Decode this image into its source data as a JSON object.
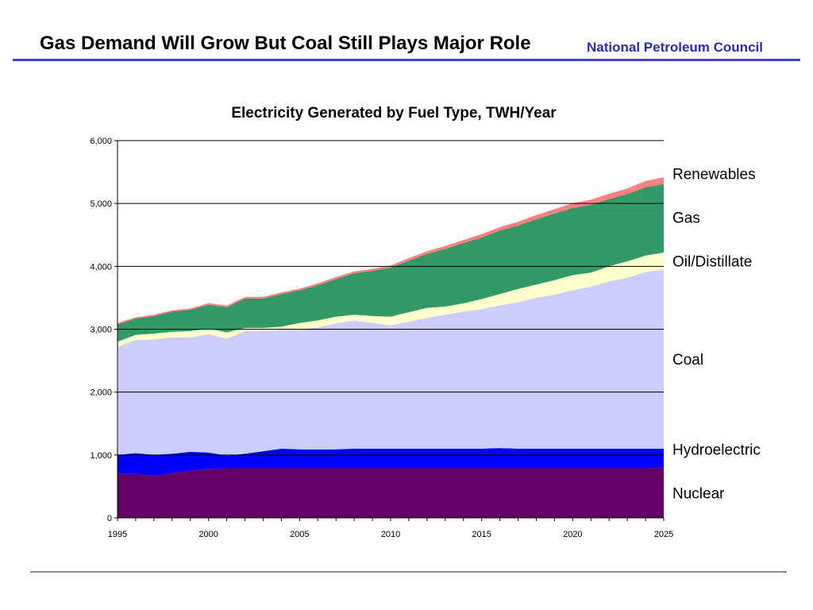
{
  "slide": {
    "title": "Gas Demand Will Grow But Coal Still Plays Major Role",
    "organization": "National Petroleum Council"
  },
  "colors": {
    "header_rule": "#4444bb",
    "organization_text": "#2a2ab8",
    "footer_rule": "#8c8c8c"
  },
  "chart_data": {
    "type": "area",
    "stacked": true,
    "title": "Electricity Generated by Fuel Type, TWH/Year",
    "xlabel": "",
    "ylabel": "",
    "xlim": [
      1995,
      2025
    ],
    "ylim": [
      0,
      6000
    ],
    "x_ticks": [
      1995,
      2000,
      2005,
      2010,
      2015,
      2020,
      2025
    ],
    "x_tick_labels": [
      "1995",
      "2000",
      "2005",
      "2010",
      "2015",
      "2020",
      "2025"
    ],
    "y_ticks": [
      0,
      1000,
      2000,
      3000,
      4000,
      5000,
      6000
    ],
    "y_tick_labels": [
      "0",
      "1,000",
      "2,000",
      "3,000",
      "4,000",
      "5,000",
      "6,000"
    ],
    "grid": "horizontal",
    "legend": "direct labels at right",
    "x": [
      1995,
      1996,
      1997,
      1998,
      1999,
      2000,
      2001,
      2002,
      2003,
      2004,
      2005,
      2006,
      2007,
      2008,
      2009,
      2010,
      2011,
      2012,
      2013,
      2014,
      2015,
      2016,
      2017,
      2018,
      2019,
      2020,
      2021,
      2022,
      2023,
      2024,
      2025
    ],
    "series": [
      {
        "name": "Nuclear",
        "color": "#660066",
        "values": [
          700,
          700,
          670,
          710,
          750,
          780,
          790,
          790,
          790,
          790,
          790,
          790,
          790,
          790,
          790,
          790,
          790,
          790,
          790,
          790,
          790,
          790,
          790,
          790,
          790,
          790,
          790,
          790,
          790,
          790,
          800
        ]
      },
      {
        "name": "Hydroelectric",
        "color": "#0000ff",
        "values": [
          300,
          330,
          330,
          310,
          300,
          260,
          200,
          230,
          270,
          310,
          300,
          300,
          300,
          310,
          310,
          310,
          310,
          310,
          310,
          310,
          310,
          320,
          310,
          310,
          310,
          310,
          310,
          310,
          310,
          310,
          300
        ]
      },
      {
        "name": "Coal",
        "color": "#ccccff",
        "values": [
          1720,
          1800,
          1840,
          1850,
          1820,
          1880,
          1860,
          1950,
          1910,
          1890,
          1900,
          1940,
          2000,
          2040,
          2000,
          1960,
          2020,
          2080,
          2130,
          2180,
          2220,
          2270,
          2330,
          2400,
          2450,
          2520,
          2580,
          2660,
          2720,
          2810,
          2850
        ]
      },
      {
        "name": "Oil/Distillate",
        "color": "#ffffcc",
        "values": [
          80,
          80,
          90,
          90,
          100,
          90,
          100,
          50,
          50,
          50,
          110,
          110,
          110,
          90,
          110,
          140,
          150,
          160,
          130,
          130,
          160,
          180,
          210,
          210,
          230,
          240,
          220,
          240,
          260,
          260,
          270
        ]
      },
      {
        "name": "Gas",
        "color": "#339966",
        "values": [
          280,
          260,
          280,
          320,
          340,
          380,
          400,
          470,
          470,
          520,
          520,
          560,
          600,
          660,
          720,
          780,
          820,
          860,
          920,
          960,
          980,
          1010,
          1010,
          1040,
          1060,
          1070,
          1080,
          1070,
          1070,
          1090,
          1090
        ]
      },
      {
        "name": "Renewables",
        "color": "#ff8080",
        "values": [
          20,
          20,
          20,
          20,
          20,
          25,
          25,
          25,
          25,
          25,
          25,
          30,
          30,
          30,
          30,
          35,
          40,
          40,
          45,
          50,
          55,
          55,
          60,
          65,
          70,
          75,
          80,
          85,
          90,
          100,
          105
        ]
      }
    ]
  }
}
